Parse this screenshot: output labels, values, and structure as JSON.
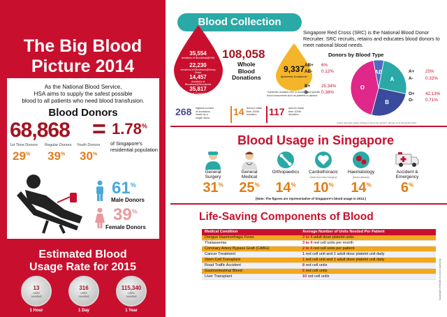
{
  "left_panel": {
    "title_line1": "The Big Blood",
    "title_line2": "Picture 2014",
    "intro_line1": "As the National Blood Service,",
    "intro_line2": "HSA aims to supply the safest possible",
    "intro_line3": "blood to all patients who need blood transfusion.",
    "blood_donors_title": "Blood Donors",
    "total_donors": "68,868",
    "equals": "=",
    "population_pct": "1.78",
    "pct_symbol": "%",
    "population_label_line1": "of Singapore's",
    "population_label_line2": "residential population",
    "donor_types": [
      {
        "label": "1st Time Donors",
        "pct": "29"
      },
      {
        "label": "Regular Donors",
        "pct": "39"
      },
      {
        "label": "Youth Donors",
        "pct": "30"
      }
    ],
    "male_pct": "61",
    "male_label": "Male Donors",
    "female_pct": "39",
    "female_label": "Female Donors",
    "estimate_line1": "Estimated Blood",
    "estimate_line2": "Usage Rate for 2015",
    "badges": [
      {
        "value": "13",
        "unit_line1": "units",
        "unit_line2": "needed",
        "label": "1 Hour"
      },
      {
        "value": "316",
        "unit_line1": "units",
        "unit_line2": "needed",
        "label": "1 Day"
      },
      {
        "value": "115,340",
        "unit_line1": "units",
        "unit_line2": "needed",
        "label": "1 Year"
      }
    ]
  },
  "collection": {
    "heading": "Blood Collection",
    "drop_stats": [
      {
        "value": "35,554",
        "caption": "donations at Bloodbank@HSA"
      },
      {
        "value": "22,230",
        "caption": "donations at Bloodbank@Dhoby Ghaut"
      },
      {
        "value": "14,457",
        "caption": "donations at Bloodbank@Woodlands"
      },
      {
        "value": "35,817",
        "caption": "donations at Community Drives"
      }
    ],
    "whole_blood_value": "108,058",
    "whole_blood_line1": "Whole",
    "whole_blood_line2": "Blood",
    "whole_blood_line3": "Donations",
    "apheresis_value": "9,337",
    "apheresis_label": "Apheresis Donations*",
    "apheresis_note": "*Apheresis donation refer to donations of specific blood components such as platelets or plasma.",
    "records": [
      {
        "value": "268",
        "text": "highest number of donations made by a single donor",
        "color": "#4a4a8c"
      },
      {
        "value": "14",
        "text": "donors made their 200th donation",
        "color": "#e07d1a"
      },
      {
        "value": "117",
        "text": "donors made their 100th donation",
        "color": "#c8102e"
      }
    ],
    "src_text": "Singapore Red Cross (SRC) is the National Blood Donor Recruiter. SRC recruits, retains and educates blood donors to meet national blood needs.",
    "donors_by_type_title": "Donors by Blood Type",
    "types_left": [
      {
        "type": "AB+",
        "pct": "6%"
      },
      {
        "type": "AB-",
        "pct": "0.12%"
      },
      {
        "type": "B+",
        "pct": "25.34%"
      },
      {
        "type": "B-",
        "pct": "0.38%"
      }
    ],
    "types_right": [
      {
        "type": "A+",
        "pct": "25%"
      },
      {
        "type": "A-",
        "pct": "0.32%"
      },
      {
        "type": "O+",
        "pct": "42.13%"
      },
      {
        "type": "O-",
        "pct": "0.71%"
      }
    ],
    "pie_labels": [
      "AB",
      "A",
      "B",
      "O"
    ],
    "pie_note": "Unless otherwise stated, all figures are for the period 1 January to 31 December 2014."
  },
  "chart_data": {
    "type": "pie",
    "title": "Donors by Blood Type",
    "categories": [
      "AB",
      "A",
      "B",
      "O"
    ],
    "values": [
      6.12,
      25.32,
      25.72,
      42.84
    ],
    "colors": [
      "#4b6cc1",
      "#2aa9a6",
      "#3a4a9c",
      "#e0288a"
    ]
  },
  "usage": {
    "heading": "Blood Usage in Singapore",
    "categories": [
      {
        "line1": "General",
        "line2": "Surgery",
        "sub": "",
        "pct": "31"
      },
      {
        "line1": "General",
        "line2": "Medical",
        "sub": "",
        "pct": "25"
      },
      {
        "line1": "Orthopaedics",
        "line2": "",
        "sub": "",
        "pct": "14"
      },
      {
        "line1": "Cardiothoracic",
        "line2": "",
        "sub": "(heart and chest surgery)",
        "pct": "10"
      },
      {
        "line1": "Haematology",
        "line2": "",
        "sub": "(blood disease)",
        "pct": "14"
      },
      {
        "line1": "Accident &",
        "line2": "Emergency",
        "sub": "",
        "pct": "6"
      }
    ],
    "note": "[Note: The figures are representative of Singapore's blood usage in 2013.]"
  },
  "components": {
    "heading": "Life-Saving Components of Blood",
    "col1": "Medical Condition",
    "col2": "Average Number of Units Needed Per Patient",
    "rows": [
      {
        "condition": "Dengue Haemorrhagic Fever",
        "num": "3 to 4",
        "units": "adult dose platelet units",
        "style": "hl"
      },
      {
        "condition": "Thalassemia",
        "num": "3 to 4",
        "units": "red cell units per month",
        "style": ""
      },
      {
        "condition": "Coronary Artery Bypass Graft (CABG)",
        "num": "2 to 4",
        "units": "red cell units per patient",
        "style": "hl"
      },
      {
        "condition": "Cancer Treatment",
        "num": "1",
        "units": "red cell unit and 1 adult dose platelet unit daily",
        "style": "alt"
      },
      {
        "condition": "Stem Cell Transplant",
        "num": "1",
        "units": "red cell unit and 1 adult dose platelet unit daily",
        "style": "hl"
      },
      {
        "condition": "Road Traffic Accident",
        "num": "8",
        "units": "red cell units",
        "style": "alt"
      },
      {
        "condition": "Gastrointestinal Bleed",
        "num": "6",
        "units": "red cell units",
        "style": "hl"
      },
      {
        "condition": "Liver Transplant",
        "num": "10",
        "units": "red cell units",
        "style": "alt"
      }
    ]
  },
  "copyright": "Copyright of Health Sciences Authority"
}
